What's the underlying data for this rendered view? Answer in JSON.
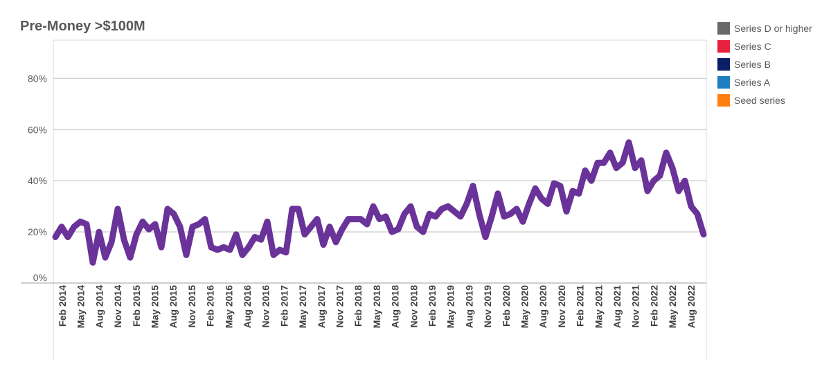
{
  "chart_data": {
    "type": "line",
    "title": "Pre-Money >$100M",
    "xlabel": "",
    "ylabel": "",
    "ylim": [
      0,
      0.95
    ],
    "y_ticks": [
      {
        "value": 0,
        "label": "0%"
      },
      {
        "value": 0.2,
        "label": "20%"
      },
      {
        "value": 0.4,
        "label": "40%"
      },
      {
        "value": 0.6,
        "label": "60%"
      },
      {
        "value": 0.8,
        "label": "80%"
      }
    ],
    "x_tick_labels": [
      "Feb 2014",
      "May 2014",
      "Aug 2014",
      "Nov 2014",
      "Feb 2015",
      "May 2015",
      "Aug 2015",
      "Nov 2015",
      "Feb 2016",
      "May 2016",
      "Aug 2016",
      "Nov 2016",
      "Feb 2017",
      "May 2017",
      "Aug 2017",
      "Nov 2017",
      "Feb 2018",
      "May 2018",
      "Aug 2018",
      "Nov 2018",
      "Feb 2019",
      "May 2019",
      "Aug 2019",
      "Nov 2019",
      "Feb 2020",
      "May 2020",
      "Aug 2020",
      "Nov 2020",
      "Feb 2021",
      "May 2021",
      "Aug 2021",
      "Nov 2021",
      "Feb 2022",
      "May 2022",
      "Aug 2022"
    ],
    "x_start_month": "Jan 2014",
    "grid": true,
    "legend_position": "right",
    "legend": [
      {
        "label": "Series D or higher",
        "color": "#696969"
      },
      {
        "label": "Series C",
        "color": "#e8203f"
      },
      {
        "label": "Series B",
        "color": "#0a1f66"
      },
      {
        "label": "Series A",
        "color": "#1f7fc0"
      },
      {
        "label": "Seed series",
        "color": "#ff8010"
      }
    ],
    "series": [
      {
        "color": "#6a3399",
        "values": [
          0.18,
          0.22,
          0.18,
          0.22,
          0.24,
          0.23,
          0.08,
          0.2,
          0.1,
          0.16,
          0.29,
          0.17,
          0.1,
          0.19,
          0.24,
          0.21,
          0.23,
          0.14,
          0.29,
          0.27,
          0.22,
          0.11,
          0.22,
          0.23,
          0.25,
          0.14,
          0.13,
          0.14,
          0.13,
          0.19,
          0.11,
          0.14,
          0.18,
          0.17,
          0.24,
          0.11,
          0.13,
          0.12,
          0.29,
          0.29,
          0.19,
          0.22,
          0.25,
          0.15,
          0.22,
          0.16,
          0.21,
          0.25,
          0.25,
          0.25,
          0.23,
          0.3,
          0.25,
          0.26,
          0.2,
          0.21,
          0.27,
          0.3,
          0.22,
          0.2,
          0.27,
          0.26,
          0.29,
          0.3,
          0.28,
          0.26,
          0.31,
          0.38,
          0.27,
          0.18,
          0.26,
          0.35,
          0.26,
          0.27,
          0.29,
          0.24,
          0.31,
          0.37,
          0.33,
          0.31,
          0.39,
          0.38,
          0.28,
          0.36,
          0.35,
          0.44,
          0.4,
          0.47,
          0.47,
          0.51,
          0.45,
          0.47,
          0.55,
          0.45,
          0.48,
          0.36,
          0.4,
          0.42,
          0.51,
          0.45,
          0.36,
          0.4,
          0.3,
          0.27,
          0.19
        ]
      }
    ]
  }
}
